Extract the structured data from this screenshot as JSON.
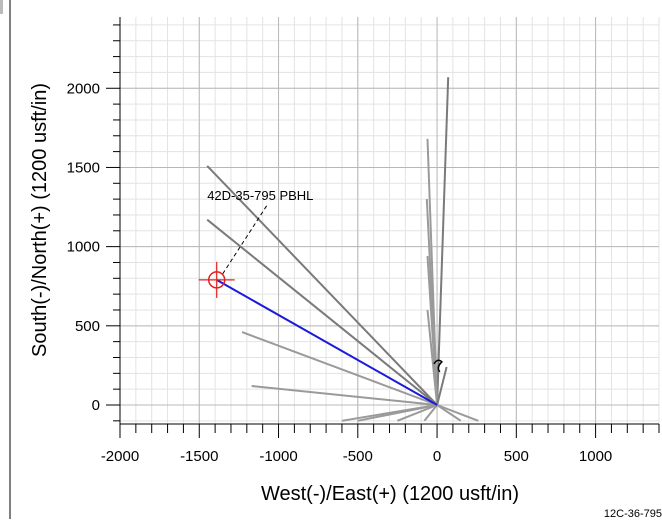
{
  "chart_data": {
    "type": "line",
    "xlabel": "West(-)/East(+) (1200 usft/in)",
    "ylabel": "South(-)/North(+) (1200 usft/in)",
    "xlim": [
      -2000,
      1400
    ],
    "ylim": [
      -120,
      2450
    ],
    "xticks": [
      -2000,
      -1500,
      -1000,
      -500,
      0,
      500,
      1000
    ],
    "yticks": [
      0,
      500,
      1000,
      1500,
      2000
    ],
    "grid": true,
    "annotations": [
      {
        "label": "42D-35-795 PBHL",
        "x": -1390,
        "y": 790,
        "text_x": -1450,
        "text_y": 1200
      }
    ],
    "corner_label": "12C-36-795",
    "target": {
      "name": "42D-35-795 PBHL",
      "x": -1390,
      "y": 790,
      "color": "#e02020"
    },
    "highlight_series": {
      "name": "42D-35-795",
      "color": "#1a1adb",
      "x": [
        0,
        -1390
      ],
      "y": [
        0,
        790
      ]
    },
    "background_series": {
      "color_light": "#9a9a9a",
      "color_dark": "#7a7a7a",
      "lines": [
        {
          "x": [
            0,
            -1450
          ],
          "y": [
            0,
            1510
          ],
          "shade": "dark"
        },
        {
          "x": [
            0,
            -1450
          ],
          "y": [
            0,
            1170
          ],
          "shade": "dark"
        },
        {
          "x": [
            0,
            -1230
          ],
          "y": [
            0,
            460
          ],
          "shade": "light"
        },
        {
          "x": [
            0,
            -1170
          ],
          "y": [
            0,
            120
          ],
          "shade": "light"
        },
        {
          "x": [
            0,
            70
          ],
          "y": [
            0,
            2070
          ],
          "shade": "dark"
        },
        {
          "x": [
            0,
            -60
          ],
          "y": [
            0,
            1680
          ],
          "shade": "light"
        },
        {
          "x": [
            0,
            -65
          ],
          "y": [
            0,
            1300
          ],
          "shade": "light"
        },
        {
          "x": [
            0,
            -60
          ],
          "y": [
            0,
            940
          ],
          "shade": "light"
        },
        {
          "x": [
            0,
            -60
          ],
          "y": [
            0,
            600
          ],
          "shade": "light"
        },
        {
          "x": [
            0,
            -500
          ],
          "y": [
            0,
            -100
          ],
          "shade": "light"
        },
        {
          "x": [
            0,
            -250
          ],
          "y": [
            0,
            -100
          ],
          "shade": "light"
        },
        {
          "x": [
            0,
            260
          ],
          "y": [
            0,
            -100
          ],
          "shade": "light"
        },
        {
          "x": [
            0,
            150
          ],
          "y": [
            0,
            -100
          ],
          "shade": "light"
        },
        {
          "x": [
            0,
            -80
          ],
          "y": [
            0,
            -100
          ],
          "shade": "light"
        },
        {
          "x": [
            0,
            -600
          ],
          "y": [
            0,
            -100
          ],
          "shade": "light"
        },
        {
          "x": [
            0,
            60
          ],
          "y": [
            0,
            240
          ],
          "shade": "dark"
        }
      ]
    }
  }
}
